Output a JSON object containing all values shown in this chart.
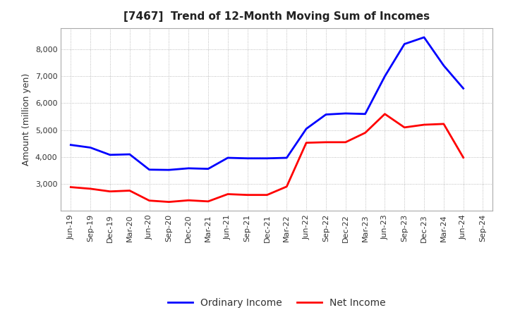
{
  "title": "[7467]  Trend of 12-Month Moving Sum of Incomes",
  "ylabel": "Amount (million yen)",
  "x_labels": [
    "Jun-19",
    "Sep-19",
    "Dec-19",
    "Mar-20",
    "Jun-20",
    "Sep-20",
    "Dec-20",
    "Mar-21",
    "Jun-21",
    "Sep-21",
    "Dec-21",
    "Mar-22",
    "Jun-22",
    "Sep-22",
    "Dec-22",
    "Mar-23",
    "Jun-23",
    "Sep-23",
    "Dec-23",
    "Mar-24",
    "Jun-24",
    "Sep-24"
  ],
  "ordinary_income": [
    4450,
    4350,
    4080,
    4100,
    3530,
    3520,
    3580,
    3560,
    3970,
    3950,
    3950,
    3970,
    5050,
    5580,
    5620,
    5600,
    7000,
    8200,
    8450,
    7400,
    6550,
    null
  ],
  "net_income": [
    2880,
    2820,
    2720,
    2750,
    2380,
    2330,
    2390,
    2350,
    2620,
    2590,
    2590,
    2900,
    4530,
    4550,
    4550,
    4900,
    5600,
    5100,
    5200,
    5230,
    3980,
    null
  ],
  "ordinary_color": "#0000ff",
  "net_color": "#ff0000",
  "ylim_min": 2000,
  "ylim_max": 8800,
  "yticks": [
    3000,
    4000,
    5000,
    6000,
    7000,
    8000
  ],
  "background_color": "#ffffff",
  "grid_color": "#aaaaaa",
  "title_fontsize": 11,
  "axis_label_fontsize": 9,
  "tick_fontsize": 8,
  "legend_fontsize": 10,
  "line_width": 2.0
}
